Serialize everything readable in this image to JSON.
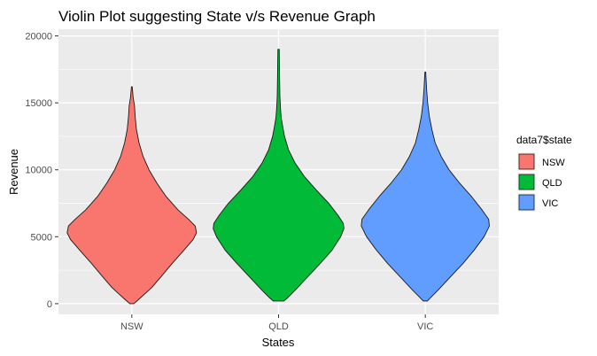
{
  "chart_data": {
    "type": "violin",
    "title": "Violin Plot suggesting State v/s Revenue Graph",
    "xlabel": "States",
    "ylabel": "Revenue",
    "categories": [
      "NSW",
      "QLD",
      "VIC"
    ],
    "ylim": [
      -800,
      20500
    ],
    "yticks": [
      0,
      5000,
      10000,
      15000,
      20000
    ],
    "ytick_labels": [
      "0",
      "5000",
      "10000",
      "15000",
      "20000"
    ],
    "grid": true,
    "legend": {
      "title": "data7$state",
      "position": "right",
      "entries": [
        {
          "label": "NSW",
          "color": "#F8766D"
        },
        {
          "label": "QLD",
          "color": "#00BA38"
        },
        {
          "label": "VIC",
          "color": "#619CFF"
        }
      ]
    },
    "series": [
      {
        "category": "NSW",
        "color": "#F8766D",
        "profile": [
          [
            0,
            0.03
          ],
          [
            300,
            0.1
          ],
          [
            700,
            0.19
          ],
          [
            1200,
            0.3
          ],
          [
            2000,
            0.44
          ],
          [
            3000,
            0.61
          ],
          [
            4000,
            0.79
          ],
          [
            4800,
            0.93
          ],
          [
            5300,
            0.98
          ],
          [
            5800,
            0.96
          ],
          [
            6300,
            0.86
          ],
          [
            7000,
            0.7
          ],
          [
            8000,
            0.52
          ],
          [
            9000,
            0.38
          ],
          [
            10000,
            0.26
          ],
          [
            11000,
            0.17
          ],
          [
            12000,
            0.11
          ],
          [
            13000,
            0.07
          ],
          [
            14000,
            0.05
          ],
          [
            14800,
            0.04
          ],
          [
            15400,
            0.02
          ],
          [
            16200,
            0.006
          ]
        ]
      },
      {
        "category": "QLD",
        "color": "#00BA38",
        "profile": [
          [
            200,
            0.08
          ],
          [
            500,
            0.15
          ],
          [
            1000,
            0.25
          ],
          [
            2000,
            0.44
          ],
          [
            3000,
            0.63
          ],
          [
            4000,
            0.81
          ],
          [
            5000,
            0.94
          ],
          [
            5600,
            0.99
          ],
          [
            6000,
            0.98
          ],
          [
            6600,
            0.9
          ],
          [
            7500,
            0.76
          ],
          [
            8500,
            0.57
          ],
          [
            9500,
            0.39
          ],
          [
            10500,
            0.25
          ],
          [
            11500,
            0.15
          ],
          [
            12500,
            0.09
          ],
          [
            13300,
            0.06
          ],
          [
            13900,
            0.04
          ],
          [
            14500,
            0.03
          ],
          [
            15500,
            0.02
          ],
          [
            17000,
            0.015
          ],
          [
            19000,
            0.01
          ]
        ]
      },
      {
        "category": "VIC",
        "color": "#619CFF",
        "profile": [
          [
            200,
            0.03
          ],
          [
            600,
            0.11
          ],
          [
            1000,
            0.19
          ],
          [
            2000,
            0.38
          ],
          [
            3000,
            0.57
          ],
          [
            4000,
            0.74
          ],
          [
            5000,
            0.89
          ],
          [
            5800,
            0.97
          ],
          [
            6300,
            0.96
          ],
          [
            7000,
            0.86
          ],
          [
            8000,
            0.7
          ],
          [
            9000,
            0.52
          ],
          [
            10000,
            0.36
          ],
          [
            11000,
            0.24
          ],
          [
            12000,
            0.15
          ],
          [
            13000,
            0.1
          ],
          [
            14000,
            0.06
          ],
          [
            15000,
            0.035
          ],
          [
            16000,
            0.02
          ],
          [
            17300,
            0.006
          ]
        ]
      }
    ]
  }
}
